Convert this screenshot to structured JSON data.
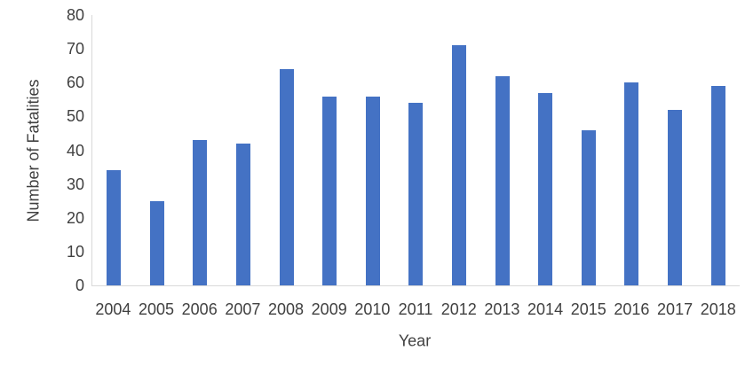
{
  "chart_data": {
    "type": "bar",
    "title": "",
    "xlabel": "Year",
    "ylabel": "Number of Fatalities",
    "categories": [
      "2004",
      "2005",
      "2006",
      "2007",
      "2008",
      "2009",
      "2010",
      "2011",
      "2012",
      "2013",
      "2014",
      "2015",
      "2016",
      "2017",
      "2018"
    ],
    "values": [
      34,
      25,
      43,
      42,
      64,
      56,
      56,
      54,
      71,
      62,
      57,
      46,
      60,
      52,
      59
    ],
    "ylim": [
      0,
      80
    ],
    "yticks": [
      0,
      10,
      20,
      30,
      40,
      50,
      60,
      70,
      80
    ],
    "grid": false,
    "legend": false,
    "bar_color": "#4472C4",
    "axis_line_color": "#D9D9D9",
    "text_color": "#404040"
  }
}
